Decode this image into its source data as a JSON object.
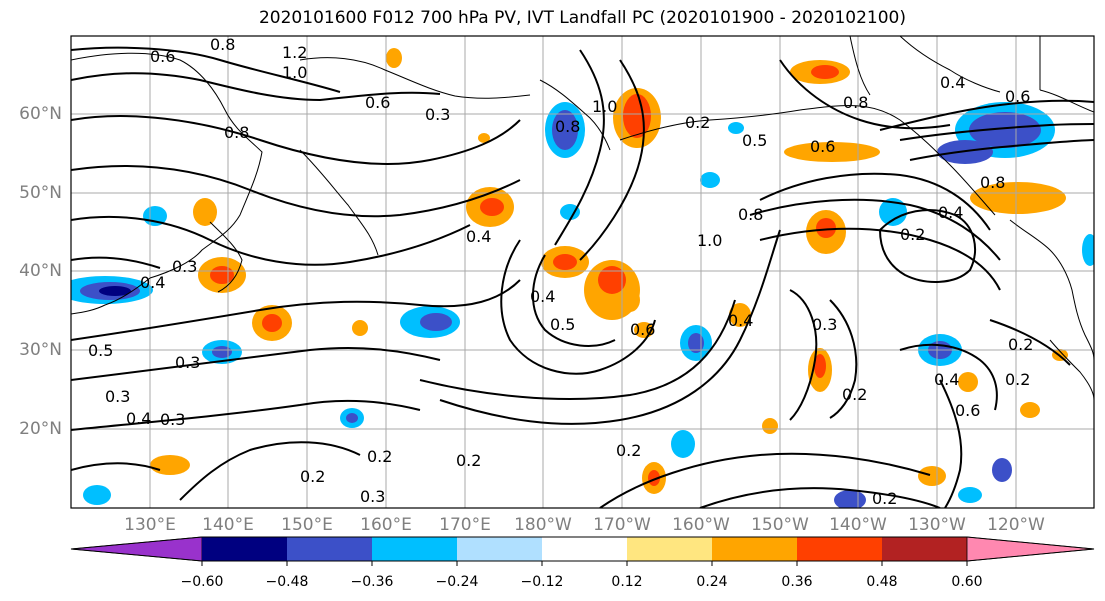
{
  "title": "2020101600 F012 700 hPa PV, IVT Landfall PC (2020101900 - 2020102100)",
  "map": {
    "lat_labels": [
      "60°N",
      "50°N",
      "40°N",
      "30°N",
      "20°N"
    ],
    "lon_labels": [
      "130°E",
      "140°E",
      "150°E",
      "160°E",
      "170°E",
      "180°W",
      "170°W",
      "160°W",
      "150°W",
      "140°W",
      "130°W",
      "120°W"
    ],
    "contour_labels": [
      "0.6",
      "0.8",
      "1.2",
      "1.0",
      "0.6",
      "0.3",
      "0.6",
      "0.8",
      "0.8",
      "0.4",
      "0.3",
      "0.4",
      "1.0",
      "0.8",
      "0.2",
      "0.5",
      "0.6",
      "0.8",
      "0.4",
      "0.4",
      "1.0",
      "0.8",
      "0.2",
      "0.3",
      "0.4",
      "0.6",
      "0.5",
      "0.4",
      "0.3",
      "0.3",
      "0.5",
      "0.4",
      "0.3",
      "0.6",
      "0.2",
      "0.2",
      "0.2",
      "0.2",
      "0.2",
      "0.3",
      "0.2",
      "0.2",
      "0.4",
      "0.2"
    ]
  },
  "colorbar": {
    "ticks": [
      "−0.60",
      "−0.48",
      "−0.36",
      "−0.24",
      "−0.12",
      "0.12",
      "0.24",
      "0.36",
      "0.48",
      "0.60"
    ],
    "colors": [
      "#9932cc",
      "#000080",
      "#3c50c8",
      "#00bfff",
      "#b0e0ff",
      "#ffffff",
      "#ffe680",
      "#ffa500",
      "#ff4000",
      "#b22222",
      "#ff88b0"
    ]
  }
}
